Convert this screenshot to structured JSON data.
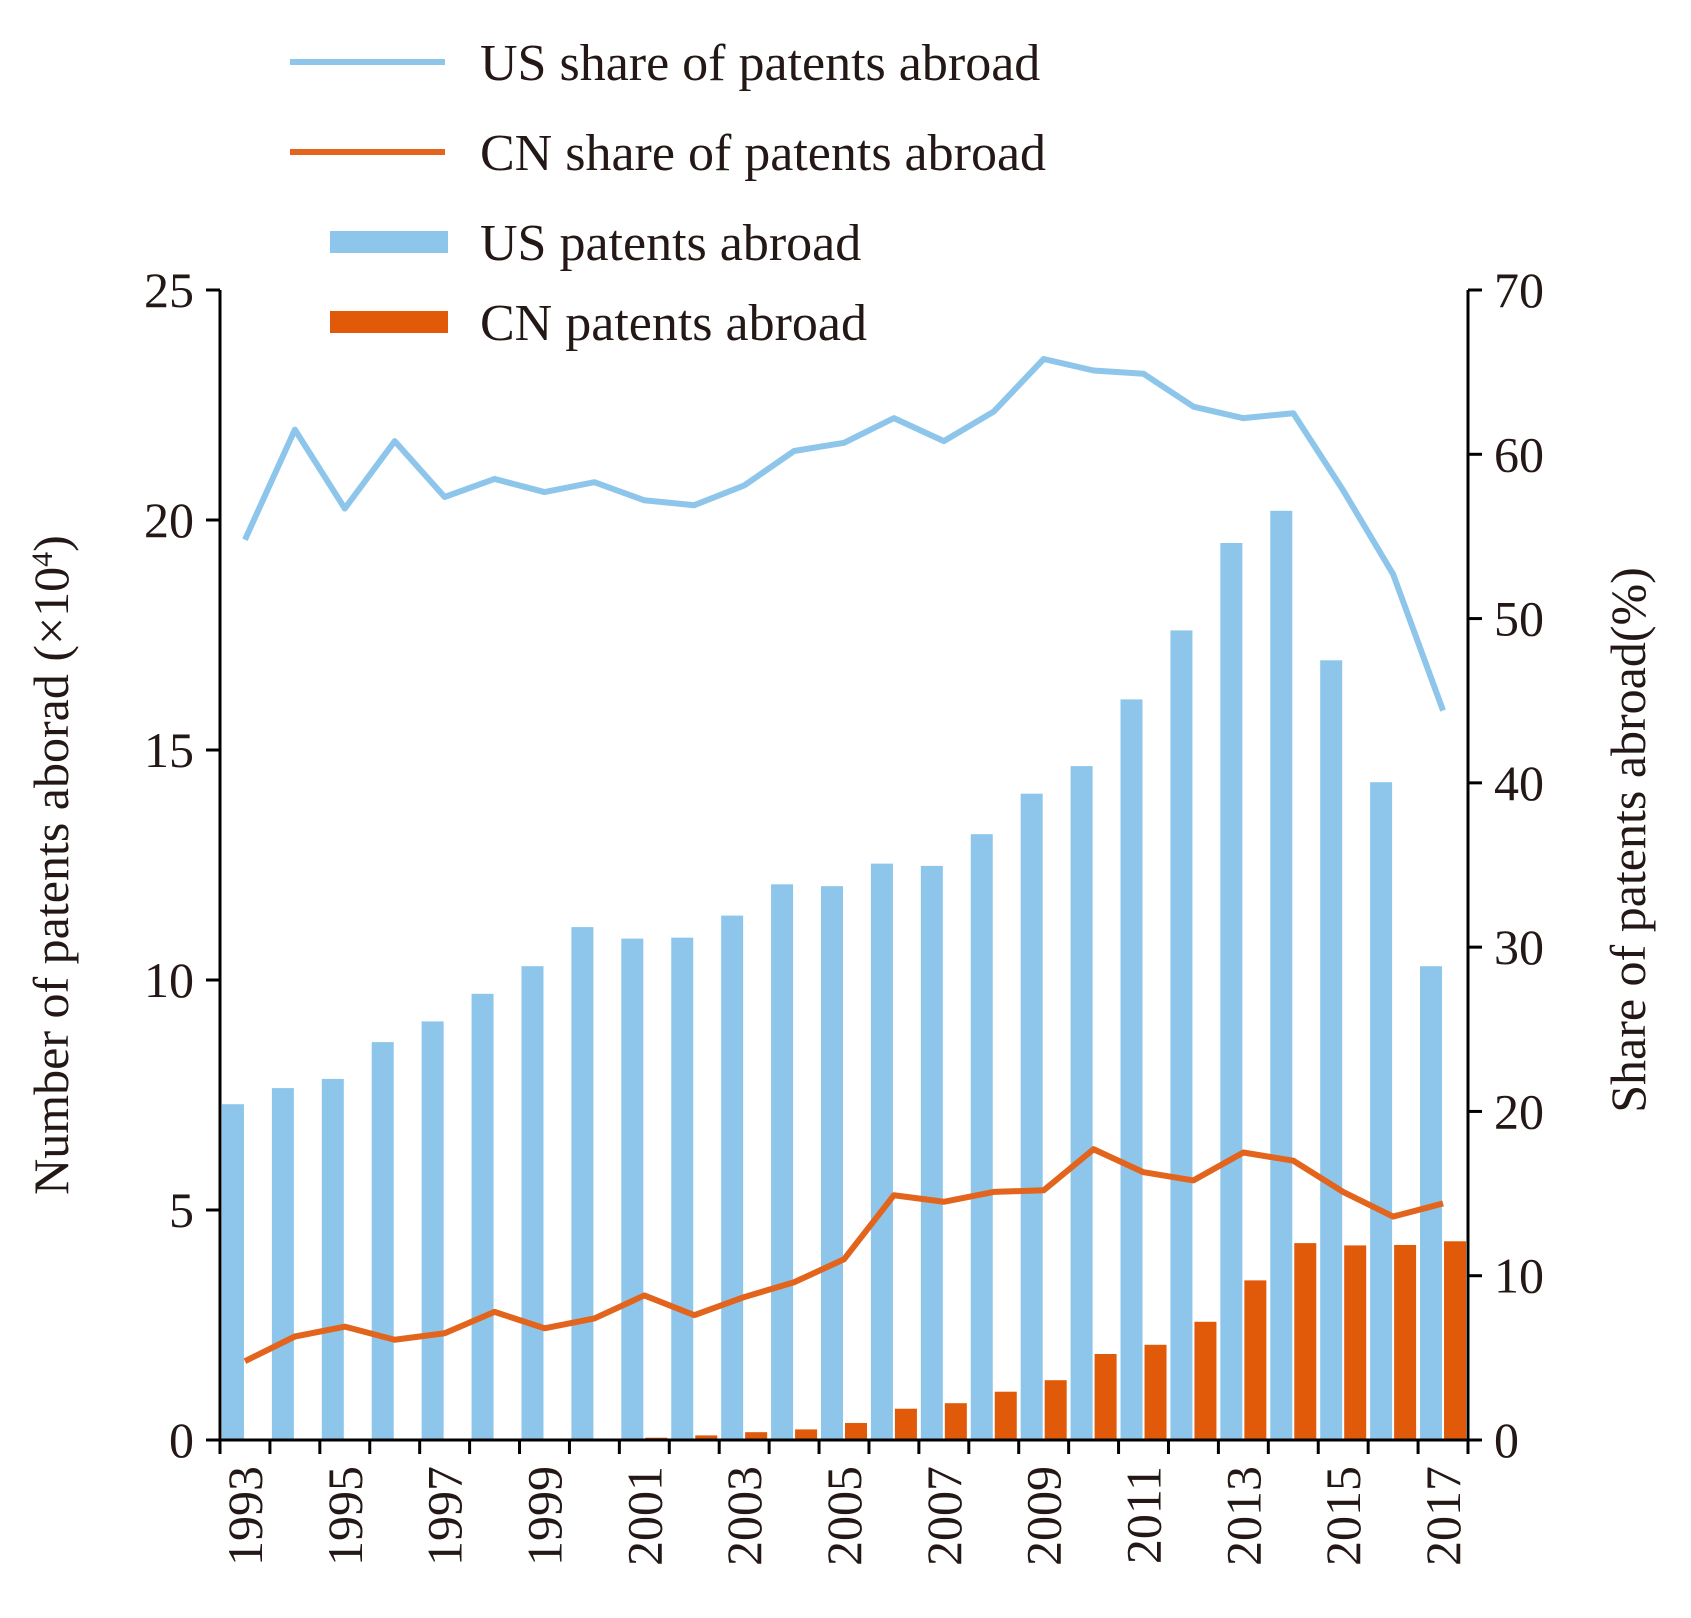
{
  "chart_data": {
    "type": "bar",
    "title": "",
    "categories": [
      "1993",
      "1994",
      "1995",
      "1996",
      "1997",
      "1998",
      "1999",
      "2000",
      "2001",
      "2002",
      "2003",
      "2004",
      "2005",
      "2006",
      "2007",
      "2008",
      "2009",
      "2010",
      "2011",
      "2012",
      "2013",
      "2014",
      "2015",
      "2016",
      "2017"
    ],
    "xtick_labels": [
      "1993",
      "1995",
      "1997",
      "1999",
      "2001",
      "2003",
      "2005",
      "2007",
      "2009",
      "2011",
      "2013",
      "2015",
      "2017"
    ],
    "xlabel": "",
    "ylabel_left": "Number of patents aborad (×10",
    "ylabel_left_sup": "4",
    "ylabel_left_close": ")",
    "ylabel_right": "Share of patents abroad(%)",
    "ylim_left": [
      0,
      25
    ],
    "yticks_left": [
      "0",
      "5",
      "10",
      "15",
      "20",
      "25"
    ],
    "ylim_right": [
      0,
      70
    ],
    "yticks_right": [
      "0",
      "10",
      "20",
      "30",
      "40",
      "50",
      "60",
      "70"
    ],
    "series": [
      {
        "name": "US share of patents abroad",
        "kind": "line",
        "axis": "right",
        "color": "#8dc6ea",
        "values": [
          54.8,
          61.5,
          56.7,
          60.8,
          57.4,
          58.5,
          57.7,
          58.3,
          57.2,
          56.9,
          58.1,
          60.2,
          60.7,
          62.2,
          60.8,
          62.6,
          65.8,
          65.1,
          64.9,
          62.9,
          62.2,
          62.5,
          57.8,
          52.7,
          44.4
        ]
      },
      {
        "name": "CN share of patents abroad",
        "kind": "line",
        "axis": "right",
        "color": "#e2641d",
        "values": [
          4.8,
          6.3,
          6.9,
          6.1,
          6.5,
          7.8,
          6.8,
          7.4,
          8.8,
          7.6,
          8.7,
          9.6,
          11.0,
          14.9,
          14.5,
          15.1,
          15.2,
          17.7,
          16.3,
          15.8,
          17.5,
          17.0,
          15.1,
          13.6,
          14.4
        ]
      },
      {
        "name": "US patents abroad",
        "kind": "bar",
        "axis": "left",
        "color": "#8dc6ea",
        "values": [
          7.3,
          7.65,
          7.85,
          8.65,
          9.1,
          9.7,
          10.3,
          11.15,
          10.9,
          10.92,
          11.4,
          12.08,
          12.04,
          12.53,
          12.48,
          13.17,
          14.05,
          14.65,
          16.1,
          17.6,
          19.5,
          20.2,
          16.95,
          14.3,
          10.3
        ]
      },
      {
        "name": "CN patents abroad",
        "kind": "bar",
        "axis": "left",
        "color": "#e05a0a",
        "values": [
          0,
          0,
          0,
          0,
          0,
          0,
          0,
          0,
          0.05,
          0.1,
          0.17,
          0.23,
          0.37,
          0.68,
          0.8,
          1.05,
          1.3,
          1.87,
          2.07,
          2.57,
          3.47,
          4.28,
          4.23,
          4.24,
          4.32
        ]
      }
    ],
    "legend": {
      "position": "top-left",
      "entries": [
        "US share of patents abroad",
        "CN share of patents abroad",
        "US patents abroad",
        "CN patents abroad"
      ]
    },
    "grid": false
  }
}
